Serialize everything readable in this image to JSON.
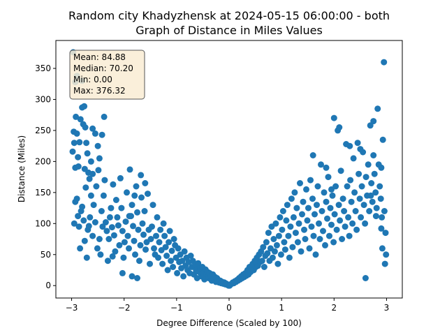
{
  "chart_data": {
    "type": "scatter",
    "title_line1": "Random city Khadyzhensk at 2024-05-15 06:00:00  - both",
    "title_line2": "Graph of Distance in Miles Values",
    "xlabel": "Degree Difference (Scaled by 100)",
    "ylabel": "Distance (Miles)",
    "xlim": [
      -3.3,
      3.3
    ],
    "ylim": [
      -20,
      395
    ],
    "xticks": [
      -3,
      -2,
      -1,
      0,
      1,
      2,
      3
    ],
    "yticks": [
      0,
      50,
      100,
      150,
      200,
      250,
      300,
      350
    ],
    "marker_color": "#1f77b4",
    "grid": false,
    "stats": {
      "mean": "Mean: 84.88",
      "median": "Median: 70.20",
      "min": "Min: 0.00",
      "max": "Max: 376.32",
      "box_color": "#f9ecd3",
      "placement": "top-left"
    },
    "points": [
      [
        -2.97,
        376
      ],
      [
        -2.96,
        248
      ],
      [
        -2.98,
        216
      ],
      [
        -2.95,
        230
      ],
      [
        -2.93,
        190
      ],
      [
        -2.92,
        272
      ],
      [
        -2.9,
        245
      ],
      [
        -2.88,
        207
      ],
      [
        -2.85,
        231
      ],
      [
        -2.83,
        268
      ],
      [
        -2.8,
        287
      ],
      [
        -2.78,
        260
      ],
      [
        -2.76,
        289
      ],
      [
        -2.74,
        255
      ],
      [
        -2.72,
        230
      ],
      [
        -2.7,
        213
      ],
      [
        -2.68,
        182
      ],
      [
        -2.66,
        172
      ],
      [
        -2.63,
        200
      ],
      [
        -2.6,
        253
      ],
      [
        -2.55,
        245
      ],
      [
        -2.5,
        225
      ],
      [
        -2.47,
        205
      ],
      [
        -2.42,
        243
      ],
      [
        -2.38,
        272
      ],
      [
        -2.93,
        328
      ],
      [
        -2.9,
        338
      ],
      [
        -2.8,
        330
      ],
      [
        -2.95,
        100
      ],
      [
        -2.93,
        135
      ],
      [
        -2.9,
        140
      ],
      [
        -2.88,
        112
      ],
      [
        -2.86,
        95
      ],
      [
        -2.84,
        60
      ],
      [
        -2.82,
        120
      ],
      [
        -2.8,
        127
      ],
      [
        -2.77,
        105
      ],
      [
        -2.75,
        72
      ],
      [
        -2.73,
        158
      ],
      [
        -2.71,
        45
      ],
      [
        -2.69,
        90
      ],
      [
        -2.67,
        96
      ],
      [
        -2.65,
        110
      ],
      [
        -2.63,
        145
      ],
      [
        -2.6,
        80
      ],
      [
        -2.58,
        130
      ],
      [
        -2.55,
        102
      ],
      [
        -2.53,
        160
      ],
      [
        -2.51,
        60
      ],
      [
        -2.49,
        186
      ],
      [
        -2.47,
        75
      ],
      [
        -2.45,
        50
      ],
      [
        -2.43,
        120
      ],
      [
        -2.41,
        95
      ],
      [
        -2.39,
        145
      ],
      [
        -2.37,
        170
      ],
      [
        -2.35,
        102
      ],
      [
        -2.33,
        88
      ],
      [
        -2.31,
        40
      ],
      [
        -2.29,
        75
      ],
      [
        -2.27,
        110
      ],
      [
        -2.25,
        125
      ],
      [
        -2.23,
        94
      ],
      [
        -2.21,
        163
      ],
      [
        -2.19,
        81
      ],
      [
        -2.17,
        55
      ],
      [
        -2.15,
        138
      ],
      [
        -2.13,
        110
      ],
      [
        -2.11,
        97
      ],
      [
        -2.09,
        65
      ],
      [
        -2.07,
        173
      ],
      [
        -2.05,
        125
      ],
      [
        -2.03,
        88
      ],
      [
        -2.01,
        45
      ],
      [
        -1.99,
        70
      ],
      [
        -1.97,
        103
      ],
      [
        -1.95,
        150
      ],
      [
        -1.93,
        80
      ],
      [
        -1.91,
        60
      ],
      [
        -1.89,
        187
      ],
      [
        -1.87,
        112
      ],
      [
        -1.85,
        130
      ],
      [
        -1.83,
        96
      ],
      [
        -1.81,
        72
      ],
      [
        -1.79,
        50
      ],
      [
        -1.77,
        160
      ],
      [
        -1.75,
        118
      ],
      [
        -1.73,
        90
      ],
      [
        -1.71,
        40
      ],
      [
        -1.69,
        65
      ],
      [
        -1.67,
        142
      ],
      [
        -1.65,
        100
      ],
      [
        -1.63,
        82
      ],
      [
        -1.61,
        120
      ],
      [
        -1.59,
        58
      ],
      [
        -1.57,
        70
      ],
      [
        -1.55,
        148
      ],
      [
        -1.53,
        90
      ],
      [
        -1.51,
        35
      ],
      [
        -1.49,
        75
      ],
      [
        -1.47,
        95
      ],
      [
        -1.45,
        130
      ],
      [
        -1.43,
        60
      ],
      [
        -1.41,
        50
      ],
      [
        -1.39,
        80
      ],
      [
        -1.37,
        110
      ],
      [
        -1.35,
        45
      ],
      [
        -1.33,
        70
      ],
      [
        -1.31,
        90
      ],
      [
        -1.29,
        57
      ],
      [
        -1.27,
        35
      ],
      [
        -1.25,
        100
      ],
      [
        -1.23,
        80
      ],
      [
        -1.21,
        62
      ],
      [
        -1.19,
        48
      ],
      [
        -1.17,
        25
      ],
      [
        -1.15,
        70
      ],
      [
        -1.13,
        88
      ],
      [
        -1.11,
        40
      ],
      [
        -1.09,
        56
      ],
      [
        -1.07,
        30
      ],
      [
        -1.05,
        75
      ],
      [
        -1.03,
        65
      ],
      [
        -1.01,
        45
      ],
      [
        -0.99,
        20
      ],
      [
        -0.97,
        60
      ],
      [
        -0.95,
        38
      ],
      [
        -0.93,
        50
      ],
      [
        -0.91,
        28
      ],
      [
        -0.89,
        40
      ],
      [
        -0.87,
        15
      ],
      [
        -0.85,
        55
      ],
      [
        -0.83,
        32
      ],
      [
        -0.81,
        45
      ],
      [
        -0.79,
        25
      ],
      [
        -0.77,
        38
      ],
      [
        -0.75,
        20
      ],
      [
        -0.73,
        48
      ],
      [
        -0.71,
        30
      ],
      [
        -0.69,
        40
      ],
      [
        -0.67,
        18
      ],
      [
        -0.65,
        32
      ],
      [
        -0.63,
        25
      ],
      [
        -0.61,
        12
      ],
      [
        -0.59,
        36
      ],
      [
        -0.57,
        22
      ],
      [
        -0.55,
        28
      ],
      [
        -0.53,
        15
      ],
      [
        -0.51,
        30
      ],
      [
        -0.49,
        20
      ],
      [
        -0.47,
        10
      ],
      [
        -0.45,
        26
      ],
      [
        -0.43,
        18
      ],
      [
        -0.41,
        22
      ],
      [
        -0.39,
        12
      ],
      [
        -0.37,
        20
      ],
      [
        -0.35,
        15
      ],
      [
        -0.33,
        8
      ],
      [
        -0.31,
        18
      ],
      [
        -0.29,
        12
      ],
      [
        -0.27,
        14
      ],
      [
        -0.25,
        6
      ],
      [
        -0.23,
        12
      ],
      [
        -0.21,
        9
      ],
      [
        -0.19,
        5
      ],
      [
        -0.17,
        8
      ],
      [
        -0.15,
        4
      ],
      [
        -0.13,
        6
      ],
      [
        -0.11,
        3
      ],
      [
        -0.09,
        5
      ],
      [
        -0.07,
        2
      ],
      [
        -0.05,
        3
      ],
      [
        -0.03,
        1
      ],
      [
        -0.01,
        0
      ],
      [
        -1.85,
        15
      ],
      [
        -2.03,
        20
      ],
      [
        -1.75,
        12
      ],
      [
        -2.22,
        47
      ],
      [
        -1.8,
        145
      ],
      [
        -1.9,
        112
      ],
      [
        -1.6,
        165
      ],
      [
        -1.68,
        178
      ],
      [
        -2.6,
        180
      ],
      [
        -2.75,
        188
      ],
      [
        -2.87,
        192
      ],
      [
        0.01,
        0
      ],
      [
        0.03,
        2
      ],
      [
        0.05,
        3
      ],
      [
        0.07,
        5
      ],
      [
        0.09,
        4
      ],
      [
        0.11,
        7
      ],
      [
        0.13,
        6
      ],
      [
        0.15,
        9
      ],
      [
        0.17,
        8
      ],
      [
        0.19,
        12
      ],
      [
        0.21,
        10
      ],
      [
        0.23,
        15
      ],
      [
        0.25,
        12
      ],
      [
        0.27,
        18
      ],
      [
        0.29,
        14
      ],
      [
        0.31,
        20
      ],
      [
        0.33,
        16
      ],
      [
        0.35,
        25
      ],
      [
        0.37,
        18
      ],
      [
        0.39,
        30
      ],
      [
        0.41,
        22
      ],
      [
        0.43,
        28
      ],
      [
        0.45,
        35
      ],
      [
        0.47,
        25
      ],
      [
        0.49,
        40
      ],
      [
        0.51,
        30
      ],
      [
        0.53,
        45
      ],
      [
        0.55,
        32
      ],
      [
        0.57,
        50
      ],
      [
        0.59,
        38
      ],
      [
        0.61,
        55
      ],
      [
        0.63,
        40
      ],
      [
        0.65,
        62
      ],
      [
        0.67,
        30
      ],
      [
        0.69,
        48
      ],
      [
        0.71,
        70
      ],
      [
        0.73,
        52
      ],
      [
        0.75,
        85
      ],
      [
        0.77,
        40
      ],
      [
        0.79,
        60
      ],
      [
        0.81,
        95
      ],
      [
        0.83,
        45
      ],
      [
        0.85,
        75
      ],
      [
        0.87,
        55
      ],
      [
        0.89,
        100
      ],
      [
        0.91,
        65
      ],
      [
        0.93,
        35
      ],
      [
        0.95,
        80
      ],
      [
        0.97,
        110
      ],
      [
        0.99,
        50
      ],
      [
        1.01,
        90
      ],
      [
        1.03,
        120
      ],
      [
        1.05,
        70
      ],
      [
        1.07,
        58
      ],
      [
        1.09,
        105
      ],
      [
        1.11,
        130
      ],
      [
        1.13,
        80
      ],
      [
        1.15,
        45
      ],
      [
        1.17,
        95
      ],
      [
        1.19,
        140
      ],
      [
        1.21,
        62
      ],
      [
        1.23,
        110
      ],
      [
        1.25,
        150
      ],
      [
        1.27,
        85
      ],
      [
        1.29,
        125
      ],
      [
        1.31,
        70
      ],
      [
        1.33,
        100
      ],
      [
        1.35,
        165
      ],
      [
        1.37,
        55
      ],
      [
        1.39,
        115
      ],
      [
        1.41,
        135
      ],
      [
        1.43,
        90
      ],
      [
        1.45,
        75
      ],
      [
        1.47,
        155
      ],
      [
        1.49,
        105
      ],
      [
        1.51,
        125
      ],
      [
        1.53,
        60
      ],
      [
        1.55,
        170
      ],
      [
        1.57,
        95
      ],
      [
        1.59,
        140
      ],
      [
        1.61,
        80
      ],
      [
        1.63,
        115
      ],
      [
        1.65,
        50
      ],
      [
        1.67,
        130
      ],
      [
        1.69,
        160
      ],
      [
        1.71,
        100
      ],
      [
        1.73,
        75
      ],
      [
        1.75,
        195
      ],
      [
        1.77,
        120
      ],
      [
        1.79,
        88
      ],
      [
        1.81,
        150
      ],
      [
        1.83,
        65
      ],
      [
        1.85,
        135
      ],
      [
        1.87,
        108
      ],
      [
        1.89,
        175
      ],
      [
        1.91,
        80
      ],
      [
        1.93,
        125
      ],
      [
        1.95,
        98
      ],
      [
        1.97,
        145
      ],
      [
        1.99,
        70
      ],
      [
        2.01,
        115
      ],
      [
        2.03,
        160
      ],
      [
        2.05,
        90
      ],
      [
        2.07,
        250
      ],
      [
        2.09,
        130
      ],
      [
        2.11,
        105
      ],
      [
        2.13,
        185
      ],
      [
        2.15,
        75
      ],
      [
        2.17,
        140
      ],
      [
        2.19,
        120
      ],
      [
        2.21,
        95
      ],
      [
        2.23,
        228
      ],
      [
        2.25,
        160
      ],
      [
        2.27,
        110
      ],
      [
        2.29,
        80
      ],
      [
        2.31,
        170
      ],
      [
        2.33,
        135
      ],
      [
        2.35,
        100
      ],
      [
        2.37,
        205
      ],
      [
        2.39,
        150
      ],
      [
        2.41,
        120
      ],
      [
        2.43,
        90
      ],
      [
        2.45,
        230
      ],
      [
        2.47,
        180
      ],
      [
        2.49,
        140
      ],
      [
        2.51,
        110
      ],
      [
        2.53,
        160
      ],
      [
        2.55,
        215
      ],
      [
        2.57,
        130
      ],
      [
        2.59,
        100
      ],
      [
        2.61,
        175
      ],
      [
        2.63,
        145
      ],
      [
        2.65,
        195
      ],
      [
        2.67,
        120
      ],
      [
        2.69,
        258
      ],
      [
        2.71,
        165
      ],
      [
        2.73,
        135
      ],
      [
        2.75,
        210
      ],
      [
        2.77,
        180
      ],
      [
        2.79,
        150
      ],
      [
        2.81,
        125
      ],
      [
        2.83,
        285
      ],
      [
        2.85,
        195
      ],
      [
        2.87,
        160
      ],
      [
        2.89,
        140
      ],
      [
        2.91,
        110
      ],
      [
        2.93,
        235
      ],
      [
        2.95,
        360
      ],
      [
        2.96,
        120
      ],
      [
        2.97,
        35
      ],
      [
        2.98,
        85
      ],
      [
        2.99,
        50
      ],
      [
        2.6,
        12
      ],
      [
        2.7,
        145
      ],
      [
        2.9,
        190
      ],
      [
        2.0,
        270
      ],
      [
        2.1,
        255
      ],
      [
        1.85,
        190
      ],
      [
        1.95,
        155
      ],
      [
        2.3,
        225
      ],
      [
        2.5,
        220
      ],
      [
        1.6,
        210
      ],
      [
        2.75,
        265
      ],
      [
        2.8,
        112
      ],
      [
        2.9,
        92
      ],
      [
        2.92,
        60
      ]
    ]
  }
}
